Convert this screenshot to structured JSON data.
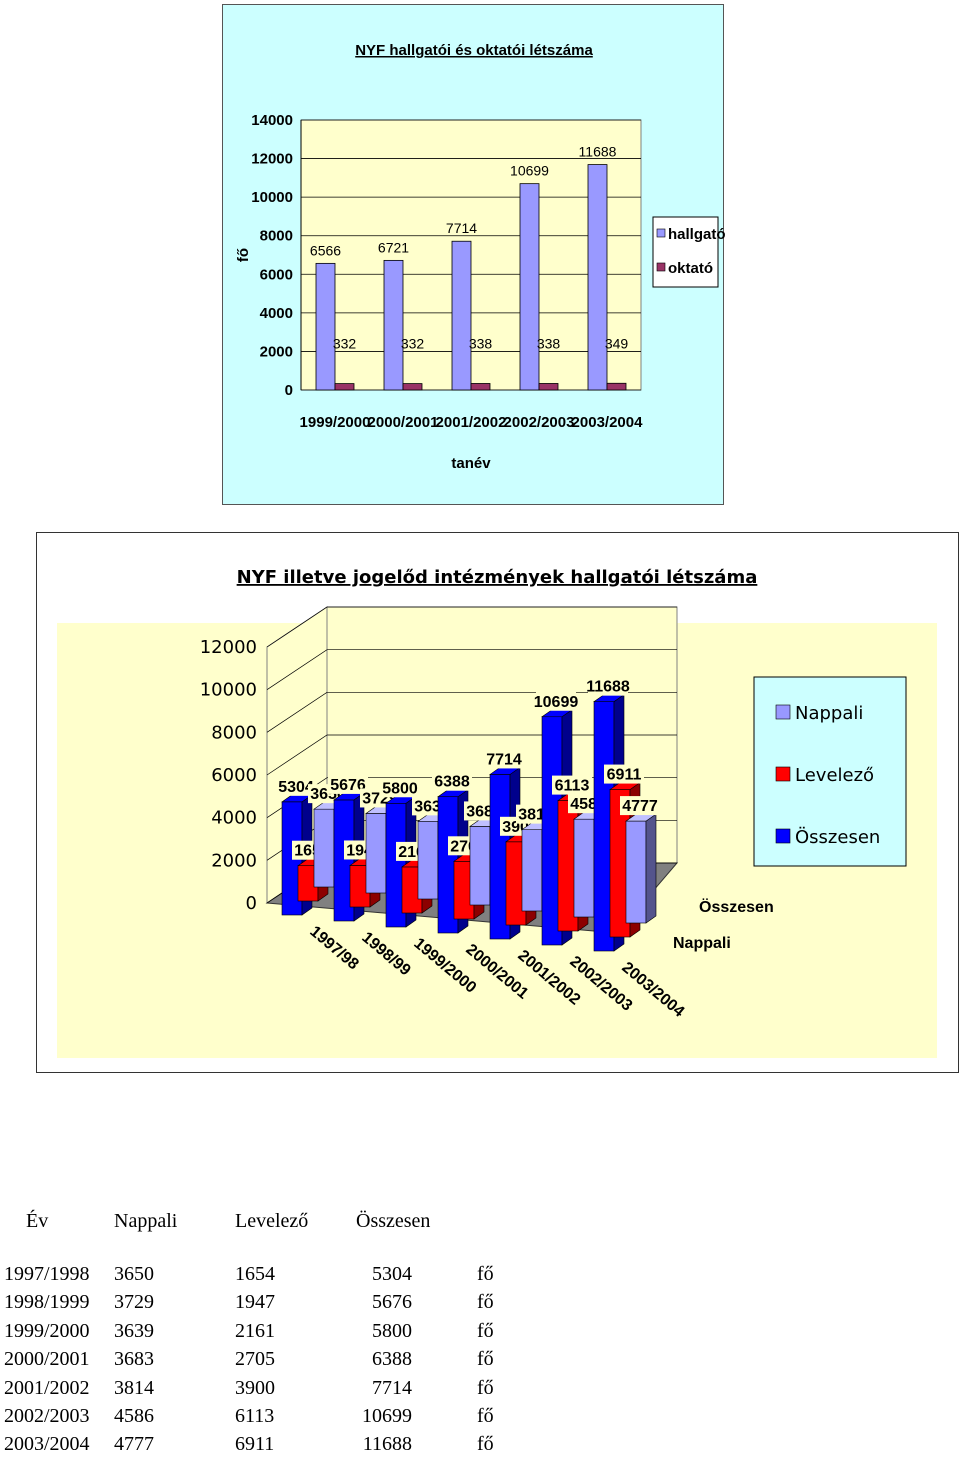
{
  "charts": [
    {
      "title": "NYF hallgatói és oktatói létszáma",
      "ylabel": "fő",
      "xlabel": "tanév"
    },
    {
      "title": "NYF illetve jogelőd intézmények hallgatói létszáma",
      "depth_labels": [
        "Összesen",
        "Nappali"
      ]
    }
  ],
  "chart_data": [
    {
      "type": "bar",
      "title": "NYF hallgatói és oktatói létszáma",
      "xlabel": "tanév",
      "ylabel": "fő",
      "categories": [
        "1999/2000",
        "2000/2001",
        "2001/2002",
        "2002/2003",
        "2003/2004"
      ],
      "series": [
        {
          "name": "hallgató",
          "color": "#9999ff",
          "values": [
            6566,
            6721,
            7714,
            10699,
            11688
          ]
        },
        {
          "name": "oktató",
          "color": "#993366",
          "values": [
            332,
            332,
            338,
            338,
            349
          ]
        }
      ],
      "ylim": [
        0,
        14000
      ],
      "yticks": [
        0,
        2000,
        4000,
        6000,
        8000,
        10000,
        12000,
        14000
      ],
      "grid": true,
      "legend": "right"
    },
    {
      "type": "bar",
      "subtype": "3d-clustered",
      "title": "NYF illetve jogelőd intézmények hallgatói létszáma",
      "categories": [
        "1997/98",
        "1998/99",
        "1999/2000",
        "2000/2001",
        "2001/2002",
        "2002/2003",
        "2003/2004"
      ],
      "series": [
        {
          "name": "Nappali",
          "color": "#9999ff",
          "values": [
            3650,
            3729,
            3639,
            3683,
            3814,
            4586,
            4777
          ]
        },
        {
          "name": "Levelező",
          "color": "#ff0000",
          "values": [
            1654,
            1947,
            2161,
            2705,
            3900,
            6113,
            6911
          ]
        },
        {
          "name": "Összesen",
          "color": "#0000ff",
          "values": [
            5304,
            5676,
            5800,
            6388,
            7714,
            10699,
            11688
          ]
        }
      ],
      "ylim": [
        0,
        12000
      ],
      "yticks": [
        0,
        2000,
        4000,
        6000,
        8000,
        10000,
        12000
      ],
      "grid": true,
      "legend": "right"
    }
  ],
  "table": {
    "headers": [
      "Év",
      "Nappali",
      "Levelező",
      "Összesen"
    ],
    "unit": "fő",
    "rows": [
      [
        "1997/1998",
        "3650",
        "1654",
        "5304"
      ],
      [
        "1998/1999",
        "3729",
        "1947",
        "5676"
      ],
      [
        "1999/2000",
        "3639",
        "2161",
        "5800"
      ],
      [
        "2000/2001",
        "3683",
        "2705",
        "6388"
      ],
      [
        "2001/2002",
        "3814",
        "3900",
        "7714"
      ],
      [
        "2002/2003",
        "4586",
        "6113",
        "10699"
      ],
      [
        "2003/2004",
        "4777",
        "6911",
        "11688"
      ]
    ]
  }
}
